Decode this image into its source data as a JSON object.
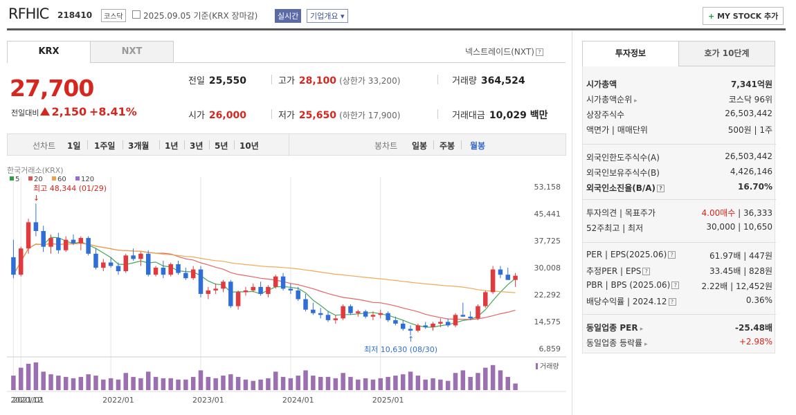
{
  "header": {
    "name": "RFHIC",
    "code": "218410",
    "market": "코스닥",
    "date": "2025.09.05  기준(KRX 장마감)",
    "live": "실시간",
    "company_info": "기업개요 ▾",
    "mystock": "MY STOCK 추가",
    "mystock_plus": "+"
  },
  "tabs": {
    "krx": "KRX",
    "nxt": "NXT",
    "nxt_link": "넥스트레이드(NXT)",
    "help": "?"
  },
  "price": {
    "current": "27,700",
    "prev_label": "전일대비",
    "change": "2,150",
    "change_pct": "+8.41%"
  },
  "stats": {
    "prev_close_label": "전일",
    "prev_close": "25,550",
    "high_label": "고가",
    "high": "28,100",
    "upper_limit": "(상한가 33,200)",
    "volume_label": "거래량",
    "volume": "364,524",
    "open_label": "시가",
    "open": "26,000",
    "low_label": "저가",
    "low": "25,650",
    "lower_limit": "(하한가 17,900)",
    "amount_label": "거래대금",
    "amount": "10,029 백만"
  },
  "period_bar": {
    "line_chart": "선차트",
    "periods": [
      "1일",
      "1주일",
      "3개월",
      "1년",
      "3년",
      "5년",
      "10년"
    ],
    "candle_chart": "봉차트",
    "candle_periods": [
      "일봉",
      "주봉",
      "월봉"
    ],
    "active_candle": "월봉"
  },
  "chart_data": {
    "type": "candlestick",
    "title": "한국거래소(KRX)",
    "legend": [
      {
        "name": "5",
        "color": "#2ea043"
      },
      {
        "name": "20",
        "color": "#e05454"
      },
      {
        "name": "60",
        "color": "#f0a040"
      },
      {
        "name": "120",
        "color": "#9a6bd0"
      }
    ],
    "y_ticks": [
      "53,158",
      "45,441",
      "37,725",
      "30,008",
      "22,292",
      "14,575",
      "6,859"
    ],
    "ylim": [
      6859,
      53158
    ],
    "x_ticks": [
      "2020/12",
      "2021/01",
      "2022/01",
      "2023/01",
      "2024/01",
      "2025/01"
    ],
    "max_label": "최고 48,344 (01/29)",
    "min_label": "최저 10,630 (08/30)",
    "volume_label": "거래량",
    "candles": [
      [
        33000,
        38000,
        27000,
        28000
      ],
      [
        28000,
        36000,
        27500,
        35500
      ],
      [
        35500,
        44000,
        34000,
        43000
      ],
      [
        43000,
        48344,
        39000,
        40500
      ],
      [
        40500,
        42000,
        34500,
        36000
      ],
      [
        36000,
        39500,
        34000,
        38500
      ],
      [
        38500,
        40000,
        34000,
        35000
      ],
      [
        35000,
        39000,
        34500,
        38000
      ],
      [
        38000,
        39500,
        36500,
        37000
      ],
      [
        37000,
        39000,
        35000,
        38500
      ],
      [
        38500,
        39000,
        33500,
        34000
      ],
      [
        34000,
        35500,
        29500,
        30000
      ],
      [
        30000,
        32500,
        29000,
        31500
      ],
      [
        31500,
        33000,
        30000,
        30500
      ],
      [
        30500,
        31500,
        28000,
        29000
      ],
      [
        29000,
        34000,
        28500,
        33500
      ],
      [
        33500,
        35500,
        32000,
        32500
      ],
      [
        32500,
        34500,
        30500,
        34000
      ],
      [
        34000,
        35000,
        27500,
        28000
      ],
      [
        28000,
        30500,
        27500,
        30000
      ],
      [
        30000,
        32000,
        27000,
        28000
      ],
      [
        28000,
        31500,
        27500,
        31000
      ],
      [
        31000,
        32000,
        28000,
        28500
      ],
      [
        28500,
        30000,
        26500,
        27000
      ],
      [
        27000,
        30500,
        26500,
        29500
      ],
      [
        29500,
        30500,
        21500,
        22500
      ],
      [
        22500,
        24500,
        21000,
        23500
      ],
      [
        23500,
        25500,
        22500,
        24000
      ],
      [
        24000,
        26500,
        23000,
        26000
      ],
      [
        26000,
        26500,
        18500,
        19000
      ],
      [
        19000,
        23500,
        18000,
        23000
      ],
      [
        23000,
        24500,
        22000,
        23500
      ],
      [
        23500,
        25500,
        23000,
        24500
      ],
      [
        24500,
        26000,
        22000,
        22500
      ],
      [
        22500,
        25000,
        21500,
        24500
      ],
      [
        24500,
        28000,
        24000,
        27500
      ],
      [
        27500,
        28500,
        23500,
        24000
      ],
      [
        24000,
        25500,
        22500,
        23500
      ],
      [
        23500,
        24500,
        20500,
        21000
      ],
      [
        21000,
        22500,
        17500,
        18000
      ],
      [
        18000,
        20000,
        16500,
        17000
      ],
      [
        17000,
        18500,
        15500,
        16500
      ],
      [
        16500,
        17500,
        14500,
        15000
      ],
      [
        15000,
        16500,
        14000,
        15500
      ],
      [
        15500,
        19500,
        15000,
        19000
      ],
      [
        19000,
        19500,
        16500,
        17000
      ],
      [
        17000,
        18000,
        16000,
        17500
      ],
      [
        17500,
        18000,
        15500,
        16000
      ],
      [
        16000,
        17500,
        15000,
        16500
      ],
      [
        16500,
        18000,
        15500,
        17000
      ],
      [
        17000,
        17500,
        14500,
        15000
      ],
      [
        15000,
        16000,
        13500,
        14000
      ],
      [
        14000,
        15000,
        12000,
        12500
      ],
      [
        12500,
        13500,
        10630,
        12000
      ],
      [
        12000,
        14000,
        11500,
        13500
      ],
      [
        13500,
        14500,
        12500,
        13000
      ],
      [
        13000,
        14500,
        12000,
        14000
      ],
      [
        14000,
        15500,
        13000,
        14500
      ],
      [
        14500,
        15500,
        13000,
        13500
      ],
      [
        13500,
        17000,
        13000,
        16500
      ],
      [
        16500,
        20000,
        16000,
        16000
      ],
      [
        16000,
        17500,
        15000,
        15500
      ],
      [
        15500,
        19500,
        15000,
        19000
      ],
      [
        19000,
        23500,
        18500,
        23000
      ],
      [
        23000,
        30500,
        22500,
        29500
      ],
      [
        29500,
        30500,
        27000,
        28000
      ],
      [
        28000,
        30000,
        26500,
        26500
      ],
      [
        26500,
        28500,
        24500,
        27700
      ]
    ],
    "volume": [
      22,
      34,
      40,
      42,
      28,
      24,
      22,
      20,
      18,
      20,
      24,
      22,
      16,
      18,
      16,
      26,
      20,
      18,
      28,
      20,
      18,
      18,
      16,
      16,
      20,
      30,
      20,
      18,
      22,
      24,
      20,
      16,
      14,
      16,
      18,
      28,
      20,
      18,
      22,
      30,
      22,
      20,
      20,
      18,
      26,
      20,
      16,
      18,
      16,
      18,
      20,
      22,
      24,
      28,
      22,
      16,
      18,
      16,
      14,
      26,
      30,
      20,
      26,
      34,
      38,
      30,
      20,
      10
    ]
  },
  "right_panel": {
    "tabs": {
      "info": "투자정보",
      "order": "호가 10단계"
    },
    "rows1": [
      {
        "l": "시가총액",
        "r": "7,341억원",
        "bold": true
      },
      {
        "l": "시가총액순위",
        "r": "코스닥 96위",
        "arrow": true
      },
      {
        "l": "상장주식수",
        "r": "26,503,442"
      },
      {
        "l": "액면가 | 매매단위",
        "r": "500원 | 1주"
      }
    ],
    "rows2": [
      {
        "l": "외국인한도주식수(A)",
        "r": "26,503,442"
      },
      {
        "l": "외국인보유주식수(B)",
        "r": "4,426,146"
      },
      {
        "l": "외국인소진율(B/A)",
        "r": "16.70%",
        "bold": true,
        "help": true
      }
    ],
    "rows3": [
      {
        "l": "투자의견 | 목표주가",
        "r_red": "4.00매수",
        "r": " | 36,333"
      },
      {
        "l": "52주최고 | 최저",
        "r": "30,000 | 10,650"
      }
    ],
    "rows4": [
      {
        "l": "PER | EPS(2025.06)",
        "r": "61.97배 | 447원",
        "help": true
      },
      {
        "l": "추정PER | EPS",
        "r": "33.45배 | 828원",
        "help": true
      },
      {
        "l": "PBR | BPS (2025.06)",
        "r": "2.22배 | 12,452원",
        "help": true
      },
      {
        "l": "배당수익률 | 2024.12",
        "r": "0.36%",
        "help": true
      }
    ],
    "rows5": [
      {
        "l": "동일업종 PER",
        "r": "-25.48배",
        "bold": true,
        "arrow": true
      },
      {
        "l": "동일업종 등락률",
        "r": "+2.98%",
        "arrow": true,
        "red": true
      }
    ]
  }
}
